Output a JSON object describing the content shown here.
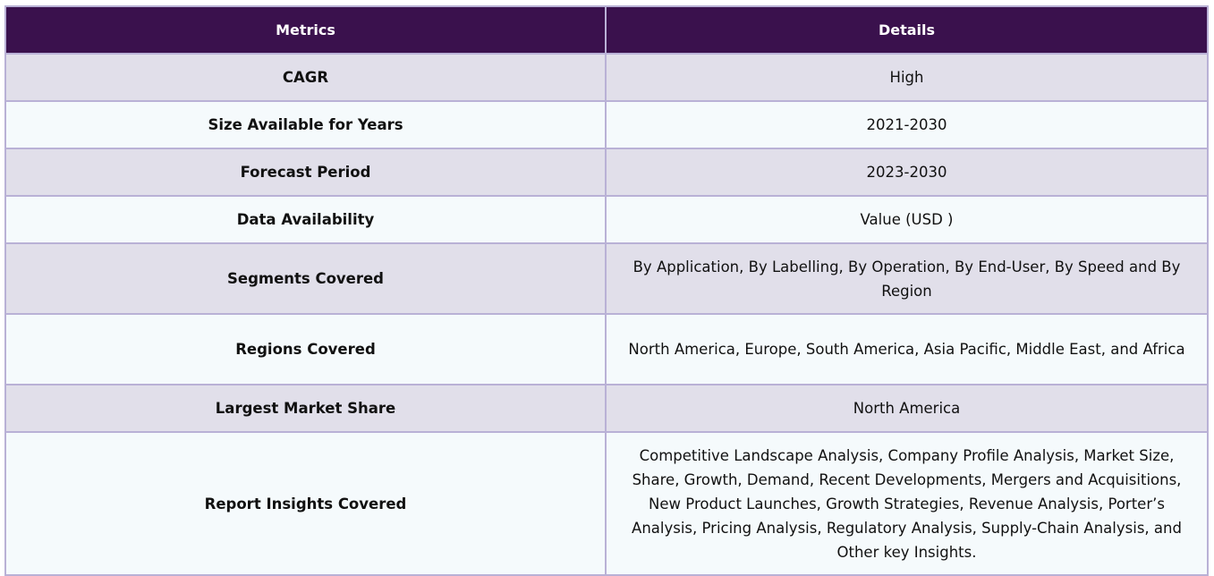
{
  "table": {
    "headers": {
      "metrics": "Metrics",
      "details": "Details"
    },
    "rows": [
      {
        "metric": "CAGR",
        "detail": "High"
      },
      {
        "metric": "Size Available for Years",
        "detail": "2021-2030"
      },
      {
        "metric": "Forecast Period",
        "detail": "2023-2030"
      },
      {
        "metric": "Data Availability",
        "detail": "Value (USD )"
      },
      {
        "metric": "Segments Covered",
        "detail": "By Application, By Labelling, By Operation, By End-User, By Speed and By Region"
      },
      {
        "metric": "Regions Covered",
        "detail": "North America, Europe, South America, Asia Pacific, Middle East, and Africa"
      },
      {
        "metric": "Largest Market Share",
        "detail": "North America"
      },
      {
        "metric": "Report Insights Covered",
        "detail": "Competitive Landscape Analysis, Company Profile Analysis, Market Size, Share, Growth, Demand, Recent Developments, Mergers and Acquisitions, New Product Launches, Growth Strategies, Revenue Analysis, Porter’s Analysis, Pricing Analysis, Regulatory Analysis, Supply-Chain Analysis, and Other key Insights."
      }
    ]
  }
}
